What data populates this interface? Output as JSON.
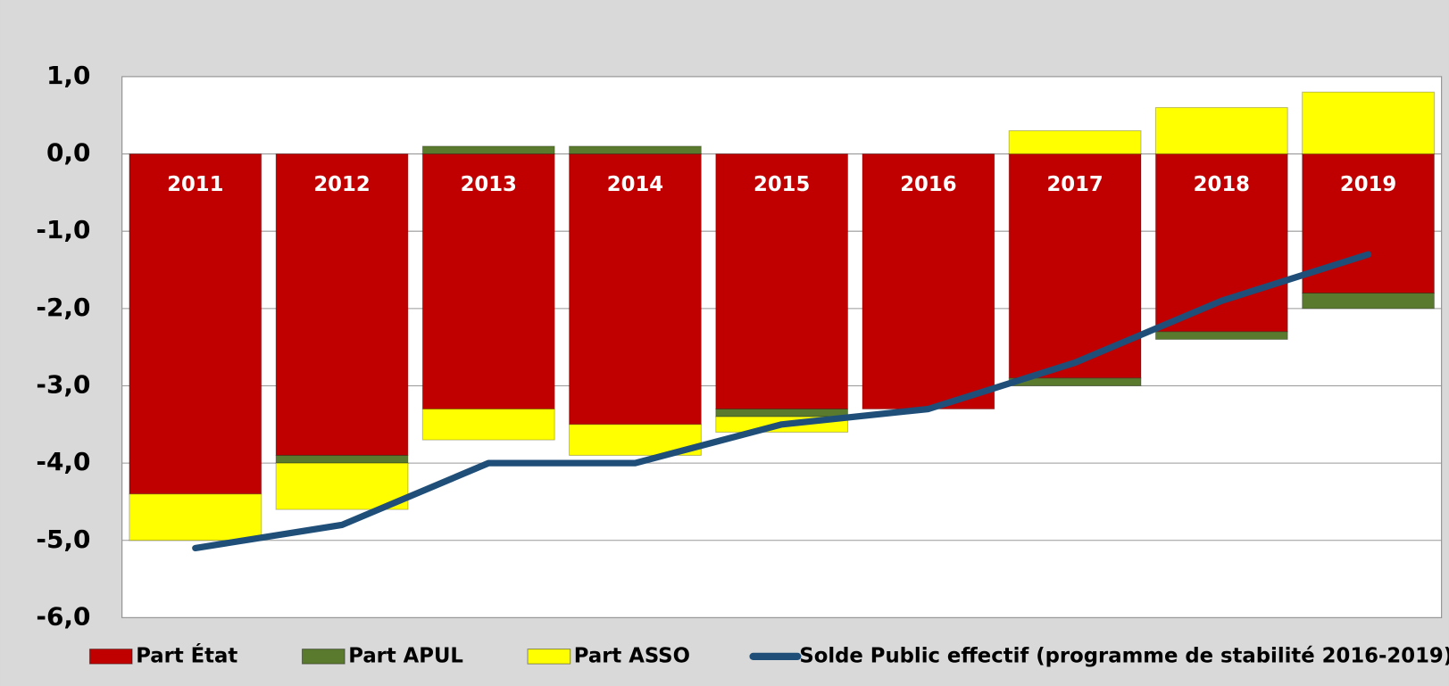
{
  "chart_data": {
    "type": "stacked_bar_line",
    "categories": [
      "2011",
      "2012",
      "2013",
      "2014",
      "2015",
      "2016",
      "2017",
      "2018",
      "2019"
    ],
    "series": [
      {
        "name": "Part État",
        "color": "#c00000",
        "type": "bar",
        "values": [
          -4.4,
          -3.9,
          -3.3,
          -3.5,
          -3.3,
          -3.3,
          -2.9,
          -2.3,
          -1.8
        ]
      },
      {
        "name": "Part APUL",
        "color": "#5a7a2e",
        "type": "bar",
        "values": [
          0,
          -0.1,
          0.1,
          0.1,
          -0.1,
          0,
          -0.1,
          -0.1,
          -0.2
        ]
      },
      {
        "name": "Part ASSO",
        "color": "#ffff00",
        "type": "bar",
        "values": [
          -0.6,
          -0.6,
          -0.4,
          -0.4,
          -0.2,
          0,
          0.3,
          0.6,
          0.8
        ]
      },
      {
        "name": "Solde Public effectif (programme de stabilité 2016-2019)",
        "color": "#1f4e79",
        "type": "line",
        "values": [
          -5.1,
          -4.8,
          -4.0,
          -4.0,
          -3.5,
          -3.3,
          -2.7,
          -1.9,
          -1.3
        ]
      }
    ],
    "ylim": [
      -6,
      1
    ],
    "yticks": [
      {
        "value": -6,
        "label": "-6,0"
      },
      {
        "value": -5,
        "label": "-5,0"
      },
      {
        "value": -4,
        "label": "-4,0"
      },
      {
        "value": -3,
        "label": "-3,0"
      },
      {
        "value": -2,
        "label": "-2,0"
      },
      {
        "value": -1,
        "label": "-1,0"
      },
      {
        "value": 0,
        "label": "0,0"
      },
      {
        "value": 1,
        "label": "1,0"
      }
    ],
    "grid": true,
    "legend": "bottom"
  }
}
